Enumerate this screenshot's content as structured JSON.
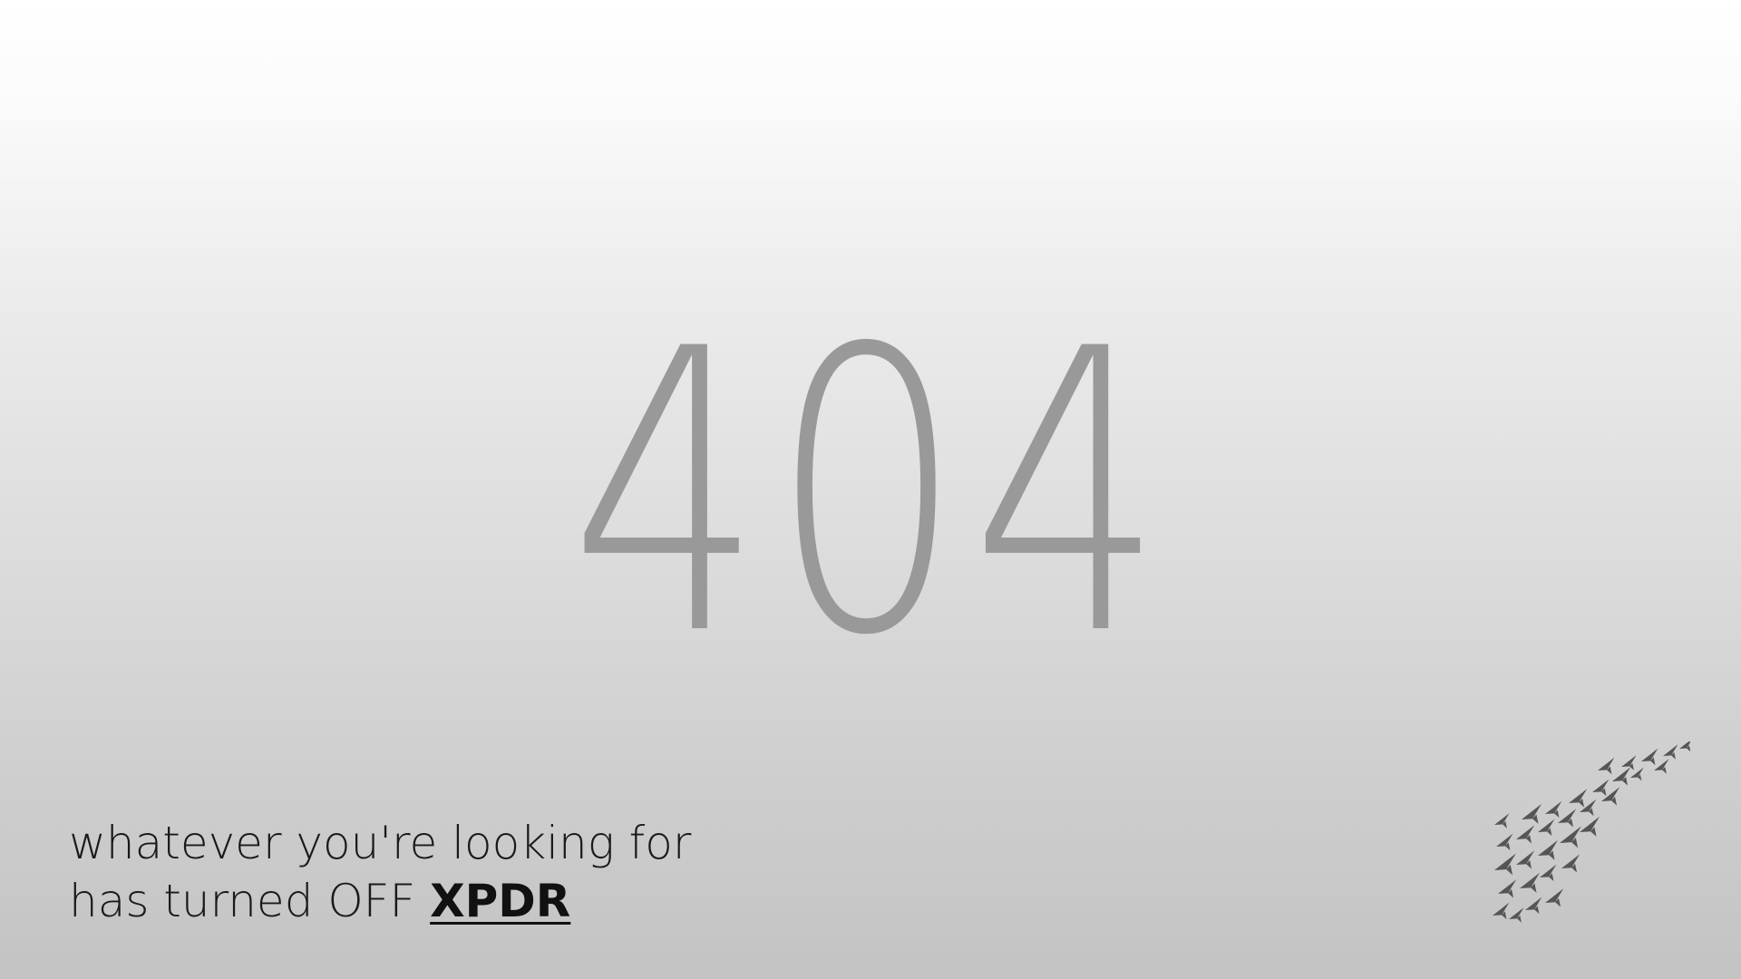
{
  "error": {
    "code": "404"
  },
  "message": {
    "line1": "whatever you're looking for",
    "line2_prefix": "has turned OFF ",
    "link_label": "XPDR"
  },
  "logo": {
    "icon": "paper-planes-flock-icon",
    "color": "#555555"
  }
}
